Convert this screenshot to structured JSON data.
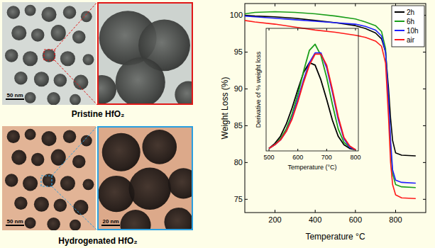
{
  "chart_data": [
    {
      "type": "line",
      "x_label": "Temperature °C",
      "y_label": "Weight Loss (%)",
      "x": [
        50,
        100,
        200,
        300,
        400,
        500,
        600,
        650,
        700,
        730,
        750,
        765,
        775,
        785,
        800,
        830,
        900
      ],
      "series": [
        {
          "name": "2h",
          "color": "#000000",
          "values": [
            100,
            99.9,
            99.8,
            99.6,
            99.3,
            99,
            98.6,
            98.2,
            97.6,
            96.8,
            95,
            90,
            86,
            83,
            81.3,
            81,
            80.9
          ]
        },
        {
          "name": "6h",
          "color": "#1a9e1a",
          "values": [
            100.2,
            100.4,
            100.5,
            100.4,
            100.2,
            99.9,
            99.5,
            99.1,
            98.6,
            97.8,
            95.5,
            88,
            82,
            78.5,
            77,
            76.7,
            76.6
          ]
        },
        {
          "name": "10h",
          "color": "#1f1fff",
          "values": [
            99.9,
            99.8,
            99.6,
            99.4,
            99.2,
            99,
            98.8,
            98.5,
            98,
            97.2,
            95,
            88.5,
            83,
            79,
            77.6,
            77.3,
            77.2
          ]
        },
        {
          "name": "air",
          "color": "#ff1a1a",
          "values": [
            99.3,
            99.1,
            98.8,
            98.4,
            98,
            97.7,
            97.3,
            97,
            96.5,
            95.8,
            93.5,
            86,
            80,
            77,
            75.6,
            75.2,
            75.1
          ]
        }
      ],
      "xlim": [
        50,
        950
      ],
      "xticks": [
        200,
        400,
        600,
        800
      ],
      "ylim": [
        73.2,
        101.6
      ],
      "yticks": [
        75,
        80,
        85,
        90,
        95,
        100
      ],
      "legend": "upper right"
    },
    {
      "type": "line",
      "x_label": "Temperature (°C)",
      "y_label": "Derivative of % weight loss",
      "x": [
        500,
        520,
        540,
        560,
        580,
        600,
        620,
        640,
        660,
        680,
        700,
        720,
        740,
        760,
        780,
        800
      ],
      "series": [
        {
          "color": "#000000",
          "values": [
            0.02,
            0.06,
            0.12,
            0.22,
            0.35,
            0.5,
            0.64,
            0.72,
            0.7,
            0.58,
            0.42,
            0.25,
            0.12,
            0.05,
            0.02,
            0.01
          ]
        },
        {
          "color": "#1a9e1a",
          "values": [
            0.02,
            0.05,
            0.1,
            0.18,
            0.3,
            0.46,
            0.65,
            0.82,
            0.87,
            0.78,
            0.6,
            0.38,
            0.18,
            0.07,
            0.03,
            0.01
          ]
        },
        {
          "color": "#1f1fff",
          "values": [
            0.02,
            0.05,
            0.09,
            0.16,
            0.27,
            0.42,
            0.58,
            0.72,
            0.8,
            0.8,
            0.68,
            0.48,
            0.26,
            0.1,
            0.03,
            0.01
          ]
        },
        {
          "color": "#ff1a1a",
          "values": [
            0.02,
            0.05,
            0.09,
            0.16,
            0.26,
            0.4,
            0.56,
            0.7,
            0.79,
            0.79,
            0.7,
            0.5,
            0.28,
            0.11,
            0.04,
            0.01
          ]
        }
      ],
      "xlim": [
        490,
        810
      ],
      "xticks": [
        500,
        600,
        700,
        800
      ],
      "ylim": [
        0,
        1
      ],
      "tick_labels": "x"
    }
  ],
  "images": [
    {
      "label": "Pristine HfO₂",
      "scale_bar": "50 nm"
    },
    {
      "label": "Hydrogenated HfO₂",
      "scale_bar": "50 nm",
      "zoom_scale_bar": "20 nm"
    }
  ]
}
